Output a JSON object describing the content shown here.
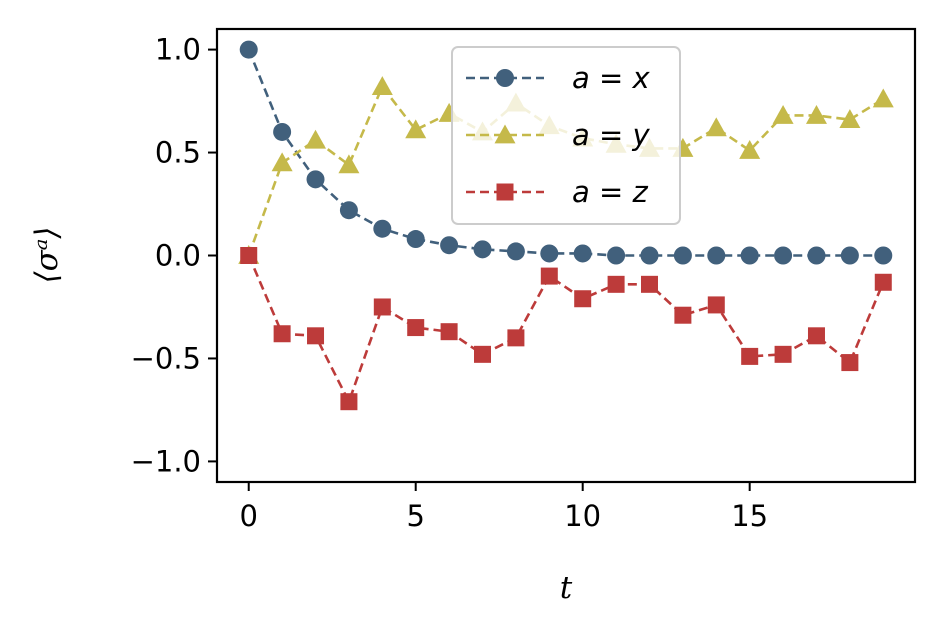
{
  "chart_data": {
    "type": "line",
    "xlabel": "t",
    "ylabel": "⟨σᵃ⟩",
    "xlim": [
      -0.95,
      19.95
    ],
    "ylim": [
      -1.1,
      1.1
    ],
    "xticks": [
      0,
      5,
      10,
      15
    ],
    "xtick_labels": [
      "0",
      "5",
      "10",
      "15"
    ],
    "yticks": [
      1.0,
      0.5,
      0.0,
      -0.5,
      -1.0
    ],
    "ytick_labels": [
      "1.0",
      "0.5",
      "0.0",
      "−0.5",
      "−1.0"
    ],
    "grid": false,
    "legend_position": "top-center",
    "x": [
      0,
      1,
      2,
      3,
      4,
      5,
      6,
      7,
      8,
      9,
      10,
      11,
      12,
      13,
      14,
      15,
      16,
      17,
      18,
      19
    ],
    "series": [
      {
        "name": "a = x",
        "marker": "circle",
        "color": "#41607c",
        "values": [
          1.0,
          0.6,
          0.37,
          0.22,
          0.13,
          0.08,
          0.05,
          0.03,
          0.02,
          0.01,
          0.01,
          0.0,
          0.0,
          0.0,
          0.0,
          0.0,
          0.0,
          0.0,
          0.0,
          0.0
        ]
      },
      {
        "name": "a = y",
        "marker": "triangle",
        "color": "#c5b94a",
        "values": [
          0.0,
          0.45,
          0.56,
          0.44,
          0.82,
          0.61,
          0.69,
          0.6,
          0.74,
          0.63,
          0.57,
          0.54,
          0.52,
          0.52,
          0.62,
          0.51,
          0.68,
          0.68,
          0.66,
          0.76
        ]
      },
      {
        "name": "a = z",
        "marker": "square",
        "color": "#bd3b3a",
        "values": [
          0.0,
          -0.38,
          -0.39,
          -0.71,
          -0.25,
          -0.35,
          -0.37,
          -0.48,
          -0.4,
          -0.1,
          -0.21,
          -0.14,
          -0.14,
          -0.29,
          -0.24,
          -0.49,
          -0.48,
          -0.39,
          -0.52,
          -0.13
        ]
      }
    ]
  }
}
